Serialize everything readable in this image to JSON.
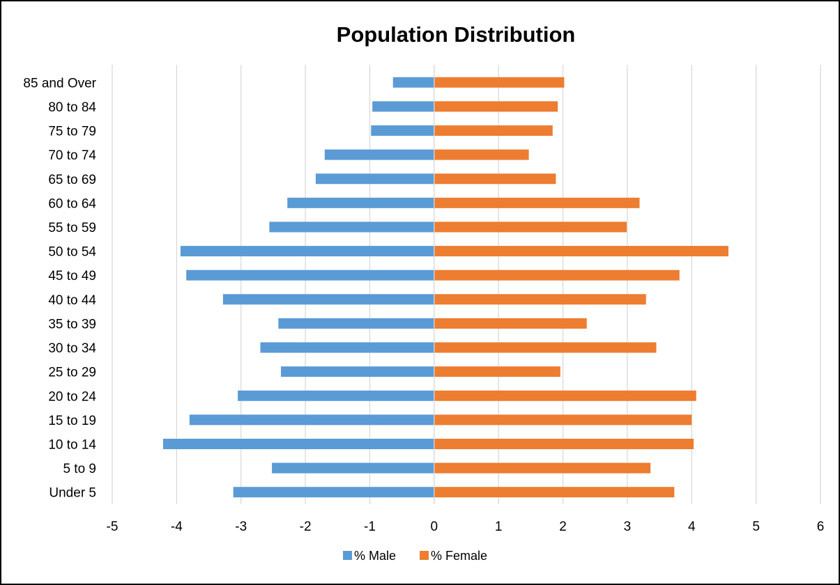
{
  "chart_data": {
    "type": "bar",
    "orientation": "horizontal",
    "title": "Population Distribution",
    "xlabel": "",
    "ylabel": "",
    "xlim": [
      -5,
      6
    ],
    "xticks": [
      -5,
      -4,
      -3,
      -2,
      -1,
      0,
      1,
      2,
      3,
      4,
      5,
      6
    ],
    "grid": "vertical",
    "legend_position": "bottom",
    "categories": [
      "85 and Over",
      "80 to 84",
      "75 to 79",
      "70 to 74",
      "65 to 69",
      "60 to 64",
      "55 to 59",
      "50 to 54",
      "45 to 49",
      "40 to 44",
      "35 to 39",
      "30 to 34",
      "25 to 29",
      "20 to 24",
      "15 to 19",
      "10 to 14",
      "5 to 9",
      "Under 5"
    ],
    "series": [
      {
        "name": "% Male",
        "color": "#5b9bd5",
        "values": [
          -0.64,
          -0.96,
          -0.98,
          -1.7,
          -1.84,
          -2.28,
          -2.56,
          -3.94,
          -3.85,
          -3.28,
          -2.42,
          -2.7,
          -2.38,
          -3.05,
          -3.8,
          -4.21,
          -2.52,
          -3.12
        ]
      },
      {
        "name": "% Female",
        "color": "#ed7d31",
        "values": [
          2.02,
          1.92,
          1.84,
          1.47,
          1.89,
          3.19,
          2.99,
          4.57,
          3.81,
          3.29,
          2.37,
          3.45,
          1.96,
          4.07,
          4.0,
          4.03,
          3.36,
          3.73
        ]
      }
    ]
  }
}
